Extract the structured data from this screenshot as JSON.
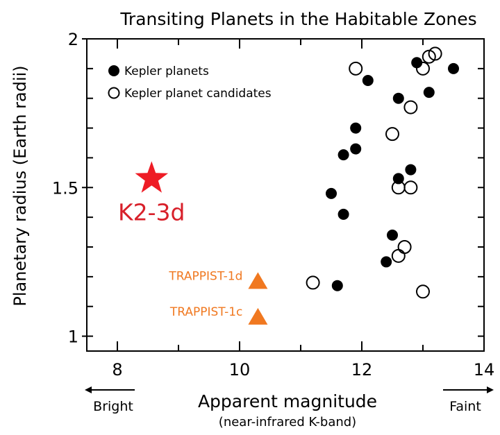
{
  "chart_data": {
    "type": "scatter",
    "title": "Transiting Planets in the Habitable Zones",
    "xlabel": "Apparent magnitude",
    "xlabel_sub": "(near-infrared K-band)",
    "ylabel": "Planetary radius (Earth radii)",
    "xlim": [
      7.5,
      14
    ],
    "ylim": [
      0.95,
      2.0
    ],
    "x_ticks": [
      8,
      10,
      12,
      14
    ],
    "x_tick_labels": [
      "8",
      "10",
      "12",
      "14"
    ],
    "y_ticks": [
      1,
      1.5,
      2
    ],
    "y_tick_labels": [
      "1",
      "1.5",
      "2"
    ],
    "grid": false,
    "legend_position": "top-left",
    "direction_labels": {
      "left": "Bright",
      "right": "Faint"
    },
    "series": [
      {
        "name": "Kepler planets",
        "marker": "filled-circle",
        "color": "#000000",
        "points": [
          [
            12.9,
            1.92
          ],
          [
            13.5,
            1.9
          ],
          [
            12.1,
            1.86
          ],
          [
            13.1,
            1.82
          ],
          [
            12.6,
            1.8
          ],
          [
            11.9,
            1.7
          ],
          [
            11.9,
            1.63
          ],
          [
            11.7,
            1.61
          ],
          [
            12.8,
            1.56
          ],
          [
            12.6,
            1.53
          ],
          [
            11.5,
            1.48
          ],
          [
            11.7,
            1.41
          ],
          [
            12.5,
            1.34
          ],
          [
            12.4,
            1.25
          ],
          [
            11.6,
            1.17
          ]
        ]
      },
      {
        "name": "Kepler planet candidates",
        "marker": "open-circle",
        "color": "#000000",
        "points": [
          [
            11.9,
            1.9
          ],
          [
            13.2,
            1.95
          ],
          [
            13.1,
            1.94
          ],
          [
            13.0,
            1.9
          ],
          [
            12.8,
            1.77
          ],
          [
            12.5,
            1.68
          ],
          [
            12.6,
            1.5
          ],
          [
            12.8,
            1.5
          ],
          [
            12.7,
            1.3
          ],
          [
            12.6,
            1.27
          ],
          [
            11.2,
            1.18
          ],
          [
            13.0,
            1.15
          ]
        ]
      }
    ],
    "highlights": [
      {
        "label": "K2-3d",
        "marker": "star",
        "color": "#ee1c25",
        "x": 8.56,
        "y": 1.53
      },
      {
        "label": "TRAPPIST-1d",
        "marker": "triangle",
        "color": "#f07820",
        "x": 10.3,
        "y": 1.18
      },
      {
        "label": "TRAPPIST-1c",
        "marker": "triangle",
        "color": "#f07820",
        "x": 10.3,
        "y": 1.06
      }
    ]
  }
}
